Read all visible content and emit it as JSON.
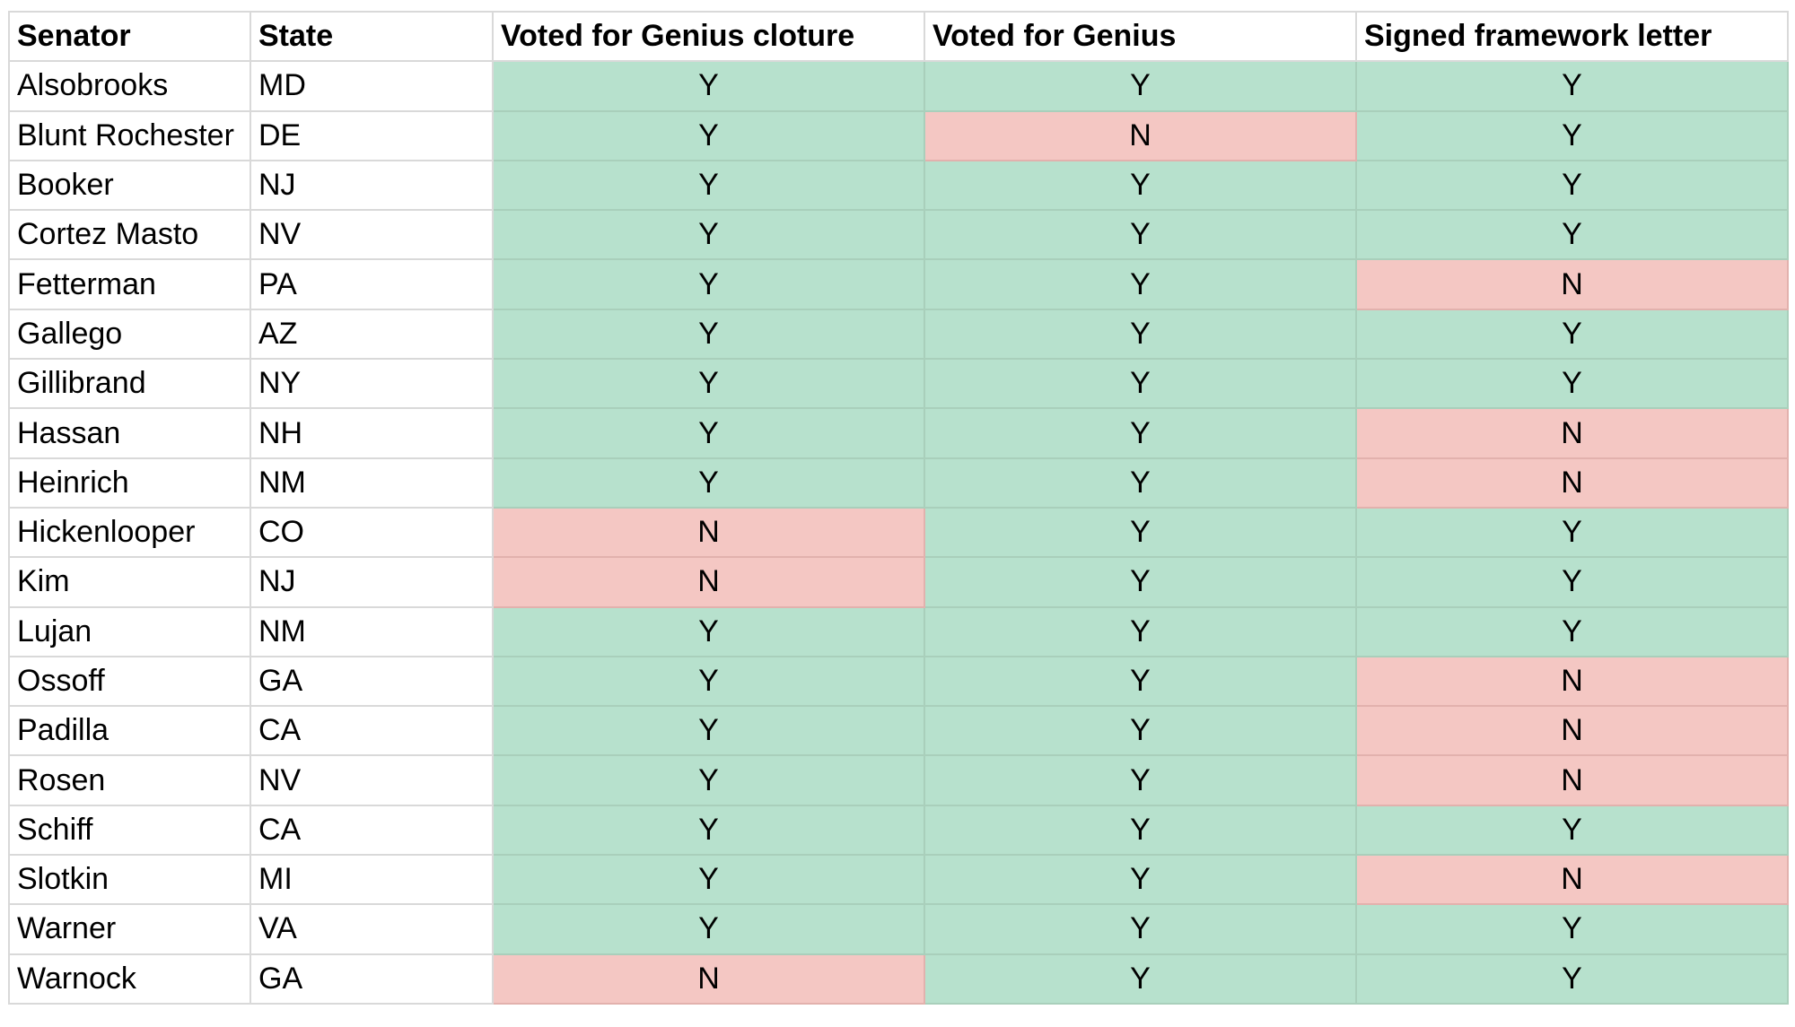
{
  "columns": [
    "Senator",
    "State",
    "Voted for Genius cloture",
    "Voted for Genius",
    "Signed framework letter"
  ],
  "colors": {
    "yes": "#b7e1cd",
    "no": "#f4c7c3",
    "grid": "#d9d9d9"
  },
  "rows": [
    {
      "senator": "Alsobrooks",
      "state": "MD",
      "cloture": "Y",
      "genius": "Y",
      "letter": "Y"
    },
    {
      "senator": "Blunt Rochester",
      "state": "DE",
      "cloture": "Y",
      "genius": "N",
      "letter": "Y"
    },
    {
      "senator": "Booker",
      "state": "NJ",
      "cloture": "Y",
      "genius": "Y",
      "letter": "Y"
    },
    {
      "senator": "Cortez Masto",
      "state": "NV",
      "cloture": "Y",
      "genius": "Y",
      "letter": "Y"
    },
    {
      "senator": "Fetterman",
      "state": "PA",
      "cloture": "Y",
      "genius": "Y",
      "letter": "N"
    },
    {
      "senator": "Gallego",
      "state": "AZ",
      "cloture": "Y",
      "genius": "Y",
      "letter": "Y"
    },
    {
      "senator": "Gillibrand",
      "state": "NY",
      "cloture": "Y",
      "genius": "Y",
      "letter": "Y"
    },
    {
      "senator": "Hassan",
      "state": "NH",
      "cloture": "Y",
      "genius": "Y",
      "letter": "N"
    },
    {
      "senator": "Heinrich",
      "state": "NM",
      "cloture": "Y",
      "genius": "Y",
      "letter": "N"
    },
    {
      "senator": "Hickenlooper",
      "state": "CO",
      "cloture": "N",
      "genius": "Y",
      "letter": "Y"
    },
    {
      "senator": "Kim",
      "state": "NJ",
      "cloture": "N",
      "genius": "Y",
      "letter": "Y"
    },
    {
      "senator": "Lujan",
      "state": "NM",
      "cloture": "Y",
      "genius": "Y",
      "letter": "Y"
    },
    {
      "senator": "Ossoff",
      "state": "GA",
      "cloture": "Y",
      "genius": "Y",
      "letter": "N"
    },
    {
      "senator": "Padilla",
      "state": "CA",
      "cloture": "Y",
      "genius": "Y",
      "letter": "N"
    },
    {
      "senator": "Rosen",
      "state": "NV",
      "cloture": "Y",
      "genius": "Y",
      "letter": "N"
    },
    {
      "senator": "Schiff",
      "state": "CA",
      "cloture": "Y",
      "genius": "Y",
      "letter": "Y"
    },
    {
      "senator": "Slotkin",
      "state": "MI",
      "cloture": "Y",
      "genius": "Y",
      "letter": "N"
    },
    {
      "senator": "Warner",
      "state": "VA",
      "cloture": "Y",
      "genius": "Y",
      "letter": "Y"
    },
    {
      "senator": "Warnock",
      "state": "GA",
      "cloture": "N",
      "genius": "Y",
      "letter": "Y"
    }
  ]
}
